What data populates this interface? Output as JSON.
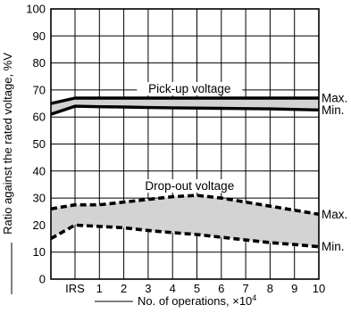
{
  "chart_data": {
    "type": "line",
    "ylabel": "Ratio against the rated voltage, %V",
    "xlabel": "No. of operations, ×10",
    "xlabel_superscript": "4",
    "ylim": [
      0,
      100
    ],
    "yticks": [
      0,
      10,
      20,
      30,
      40,
      50,
      60,
      70,
      80,
      90,
      100
    ],
    "categories": [
      "IRS",
      "1",
      "2",
      "3",
      "4",
      "5",
      "6",
      "7",
      "8",
      "9",
      "10"
    ],
    "grid": true,
    "bands": [
      {
        "name": "Pick-up voltage",
        "style": "solid",
        "fill": "#d3d3d3",
        "start": {
          "max": 65,
          "min": 61
        },
        "max": [
          67,
          67,
          67,
          67,
          67,
          67,
          67,
          67,
          67,
          67,
          67
        ],
        "min": [
          64,
          63.8,
          63.7,
          63.5,
          63.4,
          63.3,
          63.2,
          63.1,
          63,
          62.8,
          62.6
        ],
        "max_label": "Max.",
        "min_label": "Min."
      },
      {
        "name": "Drop-out voltage",
        "style": "dashed",
        "fill": "#d3d3d3",
        "start": {
          "max": 26,
          "min": 15
        },
        "max": [
          27.5,
          27.5,
          28.5,
          29.5,
          30.5,
          31,
          30,
          28.5,
          27,
          25.5,
          24
        ],
        "min": [
          20,
          19.5,
          19,
          18,
          17.2,
          16.5,
          15.5,
          14.5,
          13.5,
          12.8,
          12
        ],
        "max_label": "Max.",
        "min_label": "Min."
      }
    ]
  }
}
